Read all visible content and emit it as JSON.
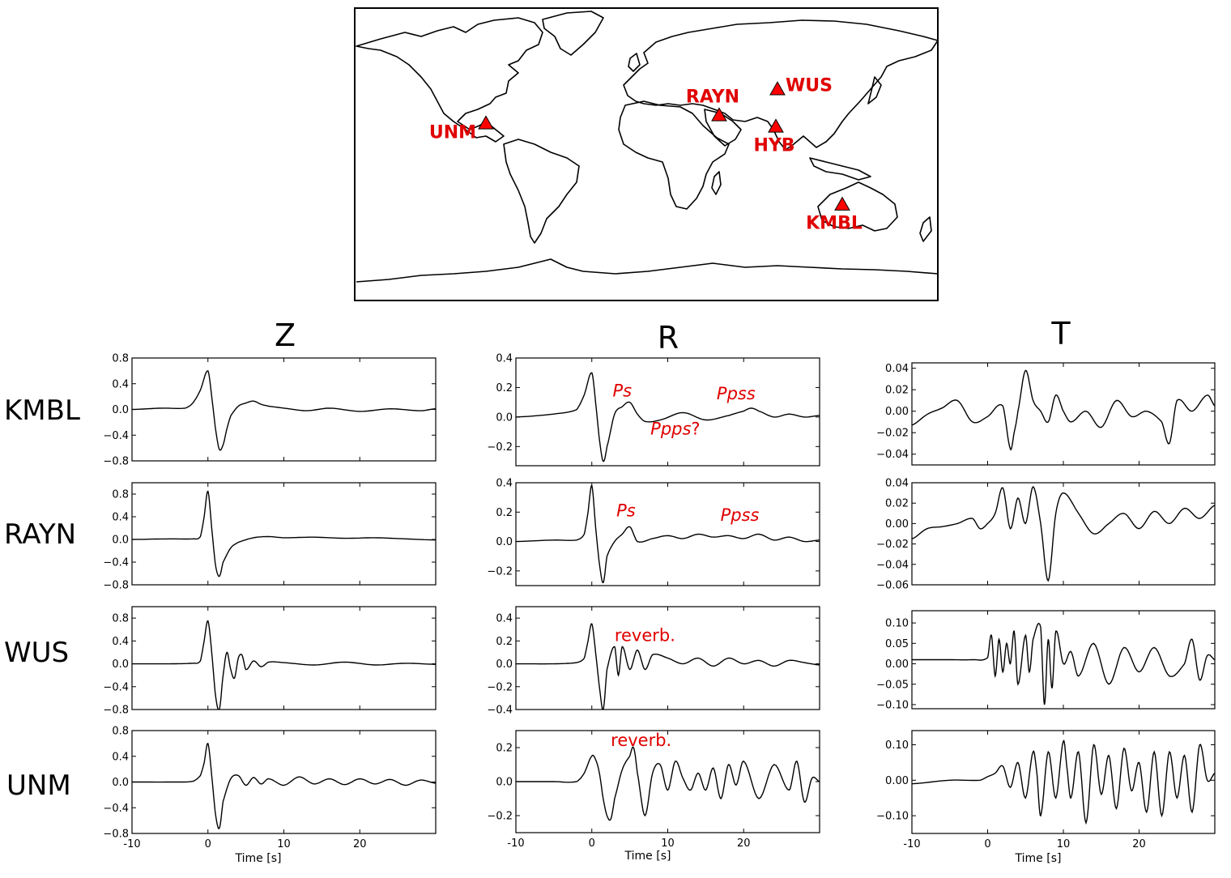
{
  "map": {
    "stations": [
      {
        "name": "WUS",
        "lon": 81,
        "lat": 40
      },
      {
        "name": "RAYN",
        "lon": 45,
        "lat": 24
      },
      {
        "name": "HYB",
        "lon": 80,
        "lat": 17
      },
      {
        "name": "UNM",
        "lon": -99,
        "lat": 19
      },
      {
        "name": "KMBL",
        "lon": 121,
        "lat": -31
      }
    ],
    "triangle_color": "#ff0000",
    "label_color": "#e00000"
  },
  "columns": [
    "Z",
    "R",
    "T"
  ],
  "rows": [
    "KMBL",
    "RAYN",
    "WUS",
    "UNM"
  ],
  "xlabel": "Time [s]",
  "chart_data": [
    {
      "type": "line",
      "component": "Z",
      "station": "KMBL",
      "xlim": [
        -10,
        30
      ],
      "ylim": [
        -0.8,
        0.8
      ],
      "yticks": [
        "0.8",
        "0.4",
        "0.0",
        "−0.4",
        "−0.8"
      ],
      "ytick_values": [
        0.8,
        0.4,
        0,
        -0.4,
        -0.8
      ],
      "x": [
        -10,
        -6,
        -3,
        -2,
        -1,
        0,
        0.5,
        1,
        1.5,
        2,
        2.5,
        3,
        4,
        5,
        6,
        7,
        8,
        10,
        13,
        16,
        20,
        24,
        28,
        30
      ],
      "y": [
        0,
        0.02,
        0.02,
        0.1,
        0.3,
        0.6,
        0.2,
        -0.3,
        -0.62,
        -0.55,
        -0.3,
        -0.1,
        0.05,
        0.1,
        0.13,
        0.08,
        0.05,
        0.02,
        -0.02,
        0.02,
        -0.03,
        0.01,
        -0.02,
        0.01
      ]
    },
    {
      "type": "line",
      "component": "R",
      "station": "KMBL",
      "xlim": [
        -10,
        30
      ],
      "ylim": [
        -0.33,
        0.4
      ],
      "yticks": [
        "0.4",
        "0.2",
        "0.0",
        "−0.2"
      ],
      "ytick_values": [
        0.4,
        0.2,
        0,
        -0.2
      ],
      "x": [
        -10,
        -5,
        -2,
        -1,
        0,
        0.5,
        1,
        1.5,
        2,
        3,
        4,
        5,
        6,
        7,
        9,
        12,
        15,
        18,
        20,
        21,
        22,
        24,
        26,
        28,
        30
      ],
      "y": [
        0,
        0.02,
        0.05,
        0.15,
        0.3,
        0.1,
        -0.15,
        -0.3,
        -0.2,
        0.02,
        0.07,
        0.1,
        0.02,
        -0.03,
        -0.02,
        0.03,
        -0.02,
        0.01,
        0.04,
        0.06,
        0.04,
        0,
        0.02,
        0,
        0.01
      ]
    },
    {
      "type": "line",
      "component": "T",
      "station": "KMBL",
      "xlim": [
        -10,
        30
      ],
      "ylim": [
        -0.05,
        0.045
      ],
      "yticks": [
        "0.04",
        "0.02",
        "0.00",
        "−0.02",
        "−0.04"
      ],
      "ytick_values": [
        0.04,
        0.02,
        0,
        -0.02,
        -0.04
      ],
      "x": [
        -10,
        -8,
        -6,
        -4,
        -2,
        0,
        2,
        3,
        3.5,
        4,
        5,
        6,
        7,
        8,
        9,
        10,
        11,
        13,
        15,
        17,
        19,
        21,
        23,
        24,
        25,
        27,
        29,
        30
      ],
      "y": [
        -0.013,
        -0.003,
        0.003,
        0.01,
        -0.01,
        -0.005,
        0.005,
        -0.035,
        -0.02,
        0.0,
        0.038,
        0.01,
        0.0,
        -0.01,
        0.015,
        0.0,
        -0.01,
        0.0,
        -0.015,
        0.01,
        -0.005,
        0.0,
        -0.01,
        -0.03,
        0.01,
        0.0,
        0.015,
        0.005
      ]
    },
    {
      "type": "line",
      "component": "Z",
      "station": "RAYN",
      "xlim": [
        -10,
        30
      ],
      "ylim": [
        -0.8,
        1.0
      ],
      "yticks": [
        "0.8",
        "0.4",
        "0.0",
        "−0.4",
        "−0.8"
      ],
      "ytick_values": [
        0.8,
        0.4,
        0,
        -0.4,
        -0.8
      ],
      "x": [
        -10,
        -5,
        -2,
        -1,
        -0.5,
        0,
        0.5,
        1,
        1.5,
        2,
        3,
        4,
        6,
        8,
        10,
        14,
        18,
        22,
        26,
        30
      ],
      "y": [
        0,
        0.01,
        0.01,
        0.05,
        0.4,
        0.85,
        0.2,
        -0.45,
        -0.65,
        -0.4,
        -0.15,
        -0.05,
        0.03,
        0.05,
        0.03,
        0.04,
        0.02,
        0.03,
        0.01,
        -0.01
      ]
    },
    {
      "type": "line",
      "component": "R",
      "station": "RAYN",
      "xlim": [
        -10,
        30
      ],
      "ylim": [
        -0.3,
        0.4
      ],
      "yticks": [
        "0.4",
        "0.2",
        "0.0",
        "−0.2"
      ],
      "ytick_values": [
        0.4,
        0.2,
        0,
        -0.2
      ],
      "x": [
        -10,
        -5,
        -2,
        -1,
        -0.5,
        0,
        0.5,
        1,
        1.5,
        2,
        3,
        4,
        5,
        6,
        8,
        10,
        12,
        14,
        16,
        18,
        20,
        22,
        24,
        26,
        28,
        30
      ],
      "y": [
        0,
        0.01,
        0.01,
        0.05,
        0.2,
        0.38,
        0.1,
        -0.15,
        -0.28,
        -0.1,
        0.0,
        0.05,
        0.1,
        0.0,
        0.02,
        0.04,
        0.02,
        0.05,
        0.03,
        0.04,
        0.02,
        0.05,
        0.01,
        0.03,
        0.0,
        0.01
      ]
    },
    {
      "type": "line",
      "component": "T",
      "station": "RAYN",
      "xlim": [
        -10,
        30
      ],
      "ylim": [
        -0.06,
        0.04
      ],
      "yticks": [
        "0.04",
        "0.02",
        "0.00",
        "−0.02",
        "−0.04",
        "−0.06"
      ],
      "ytick_values": [
        0.04,
        0.02,
        0,
        -0.02,
        -0.04,
        -0.06
      ],
      "x": [
        -10,
        -8,
        -6,
        -4,
        -2,
        -1,
        0,
        1,
        2,
        3,
        4,
        5,
        6,
        7,
        8,
        9,
        10,
        12,
        14,
        16,
        18,
        20,
        22,
        24,
        26,
        28,
        30
      ],
      "y": [
        -0.015,
        -0.005,
        -0.003,
        0.0,
        0.005,
        -0.005,
        0.0,
        0.01,
        0.035,
        -0.005,
        0.025,
        0.0,
        0.036,
        0.0,
        -0.056,
        0.01,
        0.03,
        0.01,
        -0.01,
        0.0,
        0.01,
        -0.005,
        0.012,
        0.0,
        0.015,
        0.005,
        0.018
      ]
    },
    {
      "type": "line",
      "component": "Z",
      "station": "WUS",
      "xlim": [
        -10,
        30
      ],
      "ylim": [
        -0.8,
        1.0
      ],
      "yticks": [
        "0.8",
        "0.4",
        "0.0",
        "−0.4",
        "−0.8"
      ],
      "ytick_values": [
        0.8,
        0.4,
        0,
        -0.4,
        -0.8
      ],
      "x": [
        -10,
        -5,
        -2,
        -1,
        -0.5,
        0,
        0.5,
        1,
        1.5,
        2,
        2.5,
        3,
        3.5,
        4,
        4.5,
        5,
        6,
        7,
        8,
        10,
        14,
        18,
        22,
        26,
        30
      ],
      "y": [
        0,
        0.0,
        0.01,
        0.05,
        0.4,
        0.75,
        0.2,
        -0.55,
        -0.8,
        -0.2,
        0.2,
        -0.1,
        -0.25,
        0.1,
        0.15,
        -0.1,
        0.05,
        -0.05,
        0.03,
        0.02,
        -0.02,
        0.03,
        -0.02,
        0.01,
        -0.01
      ]
    },
    {
      "type": "line",
      "component": "R",
      "station": "WUS",
      "xlim": [
        -10,
        30
      ],
      "ylim": [
        -0.4,
        0.5
      ],
      "yticks": [
        "0.4",
        "0.2",
        "0.0",
        "−0.2",
        "−0.4"
      ],
      "ytick_values": [
        0.4,
        0.2,
        0,
        -0.2,
        -0.4
      ],
      "x": [
        -10,
        -5,
        -2,
        -1,
        -0.5,
        0,
        0.5,
        1,
        1.5,
        2,
        3,
        3.5,
        4,
        5,
        6,
        7,
        8,
        10,
        12,
        14,
        16,
        18,
        20,
        22,
        24,
        26,
        28,
        30
      ],
      "y": [
        0,
        0.0,
        0.01,
        0.05,
        0.2,
        0.35,
        0.1,
        -0.2,
        -0.4,
        -0.05,
        0.15,
        -0.1,
        0.15,
        -0.05,
        0.12,
        -0.05,
        0.08,
        0.05,
        0.0,
        0.05,
        -0.02,
        0.05,
        0.0,
        0.03,
        -0.02,
        0.03,
        0.01,
        -0.01
      ]
    },
    {
      "type": "line",
      "component": "T",
      "station": "WUS",
      "xlim": [
        -10,
        30
      ],
      "ylim": [
        -0.11,
        0.13
      ],
      "yticks": [
        "0.10",
        "0.05",
        "0.00",
        "−0.05",
        "−0.10"
      ],
      "ytick_values": [
        0.1,
        0.05,
        0,
        -0.05,
        -0.1
      ],
      "x": [
        -10,
        -5,
        -2,
        0,
        0.5,
        1,
        1.5,
        2,
        2.5,
        3,
        3.5,
        4,
        5,
        5.5,
        6,
        7,
        7.5,
        8,
        8.5,
        9,
        10,
        11,
        12,
        14,
        16,
        18,
        20,
        22,
        24,
        26,
        27,
        28,
        29,
        30
      ],
      "y": [
        0.01,
        0.01,
        0.01,
        0.015,
        0.07,
        -0.03,
        0.06,
        -0.02,
        0.05,
        0.0,
        0.08,
        -0.05,
        0.07,
        -0.02,
        0.06,
        0.09,
        -0.1,
        0.06,
        -0.06,
        0.08,
        0.0,
        0.03,
        -0.03,
        0.05,
        -0.05,
        0.04,
        -0.02,
        0.04,
        -0.03,
        0.0,
        0.06,
        -0.04,
        0.02,
        0.01
      ]
    },
    {
      "type": "line",
      "component": "Z",
      "station": "UNM",
      "xlim": [
        -10,
        30
      ],
      "ylim": [
        -0.8,
        0.8
      ],
      "yticks": [
        "0.8",
        "0.4",
        "0.0",
        "−0.4",
        "−0.8"
      ],
      "ytick_values": [
        0.8,
        0.4,
        0,
        -0.4,
        -0.8
      ],
      "x": [
        -10,
        -5,
        -2,
        -1,
        -0.5,
        0,
        0.5,
        1,
        1.5,
        2,
        3,
        4,
        5,
        6,
        7,
        8,
        10,
        12,
        14,
        16,
        18,
        20,
        22,
        24,
        26,
        28,
        30
      ],
      "y": [
        0,
        0.0,
        0.01,
        0.1,
        0.3,
        0.6,
        0.1,
        -0.5,
        -0.72,
        -0.3,
        0.05,
        0.1,
        -0.05,
        0.07,
        -0.03,
        0.05,
        -0.05,
        0.08,
        -0.03,
        0.05,
        -0.04,
        0.05,
        -0.03,
        0.04,
        -0.05,
        0.03,
        -0.02
      ]
    },
    {
      "type": "line",
      "component": "R",
      "station": "UNM",
      "xlim": [
        -10,
        30
      ],
      "ylim": [
        -0.3,
        0.3
      ],
      "yticks": [
        "0.2",
        "0.0",
        "−0.2"
      ],
      "ytick_values": [
        0.2,
        0,
        -0.2
      ],
      "x": [
        -10,
        -5,
        -2,
        -1,
        0,
        0.5,
        1,
        1.5,
        2,
        2.5,
        3,
        4,
        5,
        5.5,
        6,
        7,
        8,
        9,
        10,
        11,
        12,
        13,
        14,
        15,
        16,
        17,
        18,
        19,
        20,
        22,
        24,
        26,
        27,
        28,
        29,
        30
      ],
      "y": [
        0,
        0.0,
        0.0,
        0.05,
        0.15,
        0.13,
        0.05,
        -0.1,
        -0.2,
        -0.22,
        -0.1,
        0.07,
        0.15,
        0.2,
        0.05,
        -0.2,
        0.05,
        0.1,
        -0.05,
        0.12,
        0.02,
        -0.05,
        0.05,
        -0.05,
        0.08,
        -0.1,
        0.1,
        -0.02,
        0.12,
        -0.1,
        0.1,
        -0.05,
        0.12,
        -0.12,
        0.02,
        0.0
      ]
    },
    {
      "type": "line",
      "component": "T",
      "station": "UNM",
      "xlim": [
        -10,
        30
      ],
      "ylim": [
        -0.15,
        0.14
      ],
      "yticks": [
        "0.10",
        "0.00",
        "−0.10"
      ],
      "ytick_values": [
        0.1,
        0,
        -0.1
      ],
      "x": [
        -10,
        -5,
        -1,
        0,
        1,
        2,
        3,
        4,
        5,
        6,
        6.5,
        7,
        8,
        9,
        10,
        10.5,
        11,
        12,
        13,
        14,
        15,
        16,
        17,
        18,
        19,
        20,
        21,
        22,
        23,
        24,
        25,
        26,
        27,
        28,
        29,
        30
      ],
      "y": [
        -0.01,
        0.0,
        0.0,
        0.01,
        0.02,
        0.04,
        -0.02,
        0.05,
        -0.05,
        0.08,
        0.02,
        -0.1,
        0.08,
        -0.05,
        0.11,
        0.03,
        -0.05,
        0.08,
        -0.12,
        0.1,
        -0.04,
        0.07,
        -0.08,
        0.09,
        -0.03,
        0.05,
        -0.09,
        0.08,
        -0.1,
        0.08,
        -0.05,
        0.07,
        -0.09,
        0.1,
        0.0,
        0.02
      ]
    }
  ],
  "annotations": [
    {
      "col": 1,
      "row": 0,
      "text": "Ps",
      "x": 4,
      "y": 0.14,
      "italic": true
    },
    {
      "col": 1,
      "row": 0,
      "text": "Ppss",
      "x": 19,
      "y": 0.12,
      "italic": true
    },
    {
      "col": 1,
      "row": 0,
      "text": "Ppps",
      "x": 11,
      "y": -0.12,
      "italic": true,
      "suffix": "?"
    },
    {
      "col": 1,
      "row": 1,
      "text": "Ps",
      "x": 4.5,
      "y": 0.17,
      "italic": true
    },
    {
      "col": 1,
      "row": 1,
      "text": "Ppss",
      "x": 19.5,
      "y": 0.14,
      "italic": true
    },
    {
      "col": 1,
      "row": 2,
      "text": "reverb.",
      "x": 7,
      "y": 0.2,
      "italic": false
    },
    {
      "col": 1,
      "row": 3,
      "text": "reverb.",
      "x": 6.5,
      "y": 0.21,
      "italic": false
    }
  ]
}
